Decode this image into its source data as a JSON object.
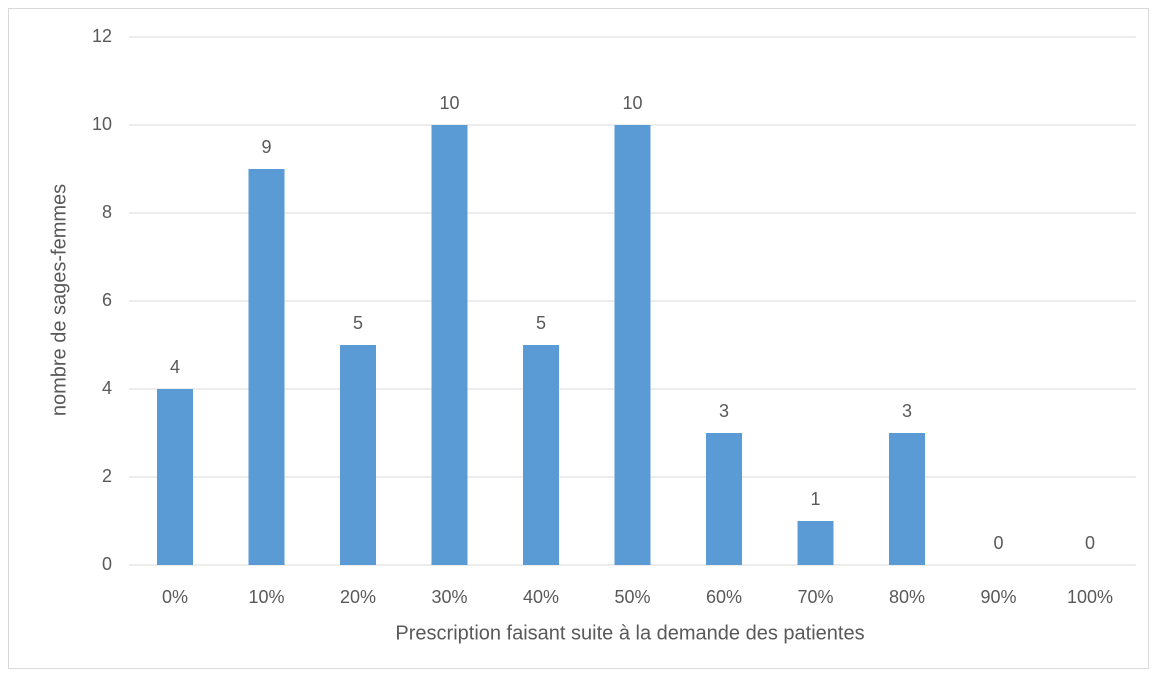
{
  "chart_data": {
    "type": "bar",
    "xlabel": "Prescription faisant suite à la demande des patientes",
    "ylabel": "nombre de sages-femmes",
    "categories": [
      "0%",
      "10%",
      "20%",
      "30%",
      "40%",
      "50%",
      "60%",
      "70%",
      "80%",
      "90%",
      "100%"
    ],
    "values": [
      4,
      9,
      5,
      10,
      5,
      10,
      3,
      1,
      3,
      0,
      0
    ],
    "color": "#5b9bd5",
    "ylim": [
      0,
      12
    ],
    "yticks": [
      0,
      2,
      4,
      6,
      8,
      10,
      12
    ],
    "grid": true
  }
}
